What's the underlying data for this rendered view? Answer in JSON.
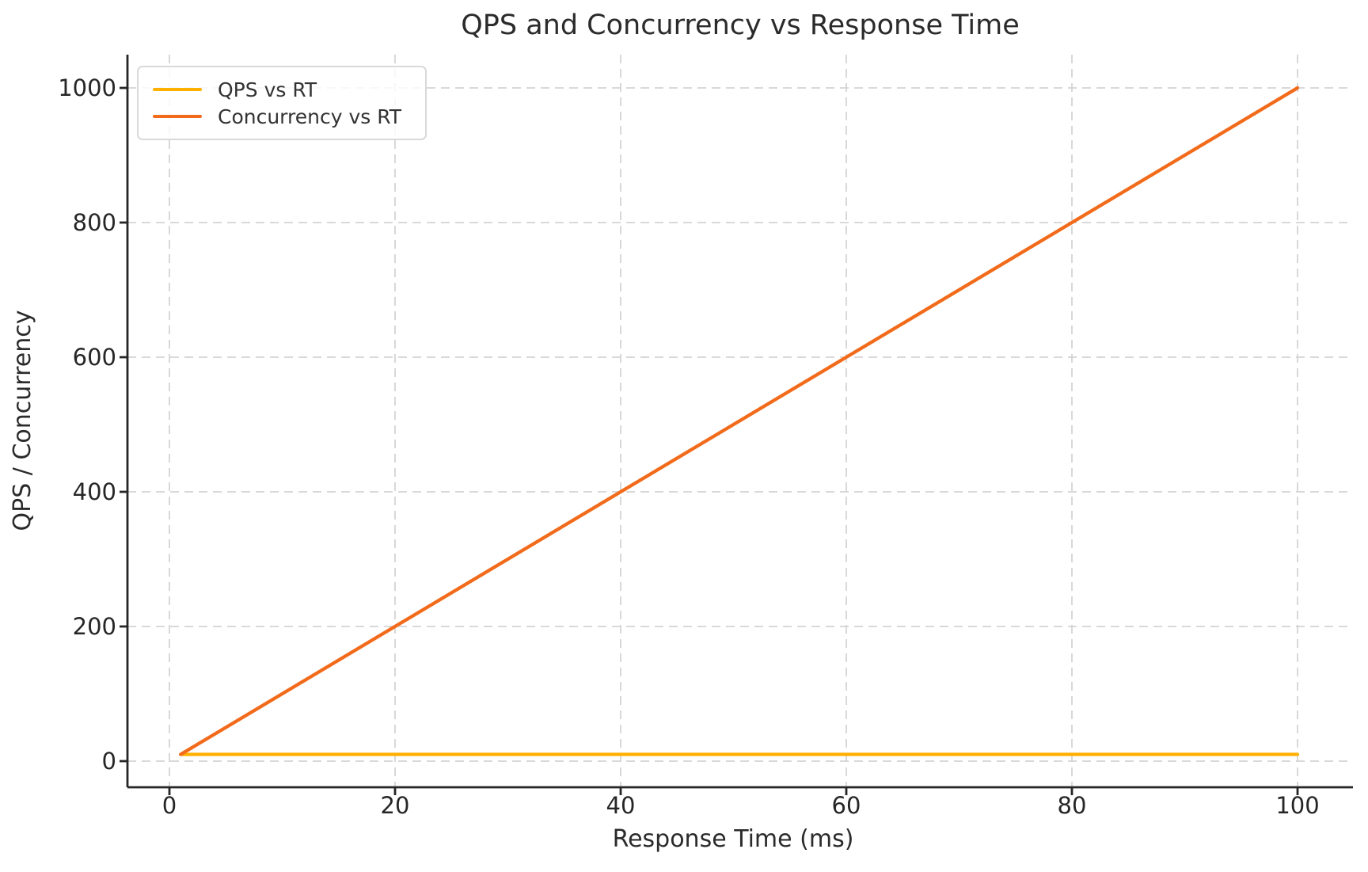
{
  "figure": {
    "background": "#ffffff"
  },
  "chart_data": {
    "type": "line",
    "title": "QPS and Concurrency vs Response Time",
    "xlabel": "Response Time (ms)",
    "ylabel": "QPS / Concurrency",
    "x_ticks": [
      0,
      20,
      40,
      60,
      80,
      100
    ],
    "y_ticks": [
      0,
      200,
      400,
      600,
      800,
      1000
    ],
    "xlim": [
      -3.95,
      104.95
    ],
    "ylim": [
      -39.5,
      1049.5
    ],
    "grid": true,
    "grid_style": "dashed",
    "legend_position": "upper-left",
    "series": [
      {
        "name": "QPS vs RT",
        "color": "#ffb000",
        "points": [
          [
            1,
            10
          ],
          [
            100,
            10
          ]
        ],
        "note": "QPS constant at 10 for RT 1-100 ms"
      },
      {
        "name": "Concurrency vs RT",
        "color": "#f26b1b",
        "points": [
          [
            1,
            10
          ],
          [
            100,
            1000
          ]
        ],
        "note": "Concurrency = 10 x RT(ms)"
      }
    ],
    "colors": {
      "grid": "#d4d4d4",
      "spine": "#262626",
      "text": "#2b2b2b",
      "tick_label": "#262626",
      "legend_border": "#d9d9d9"
    }
  }
}
